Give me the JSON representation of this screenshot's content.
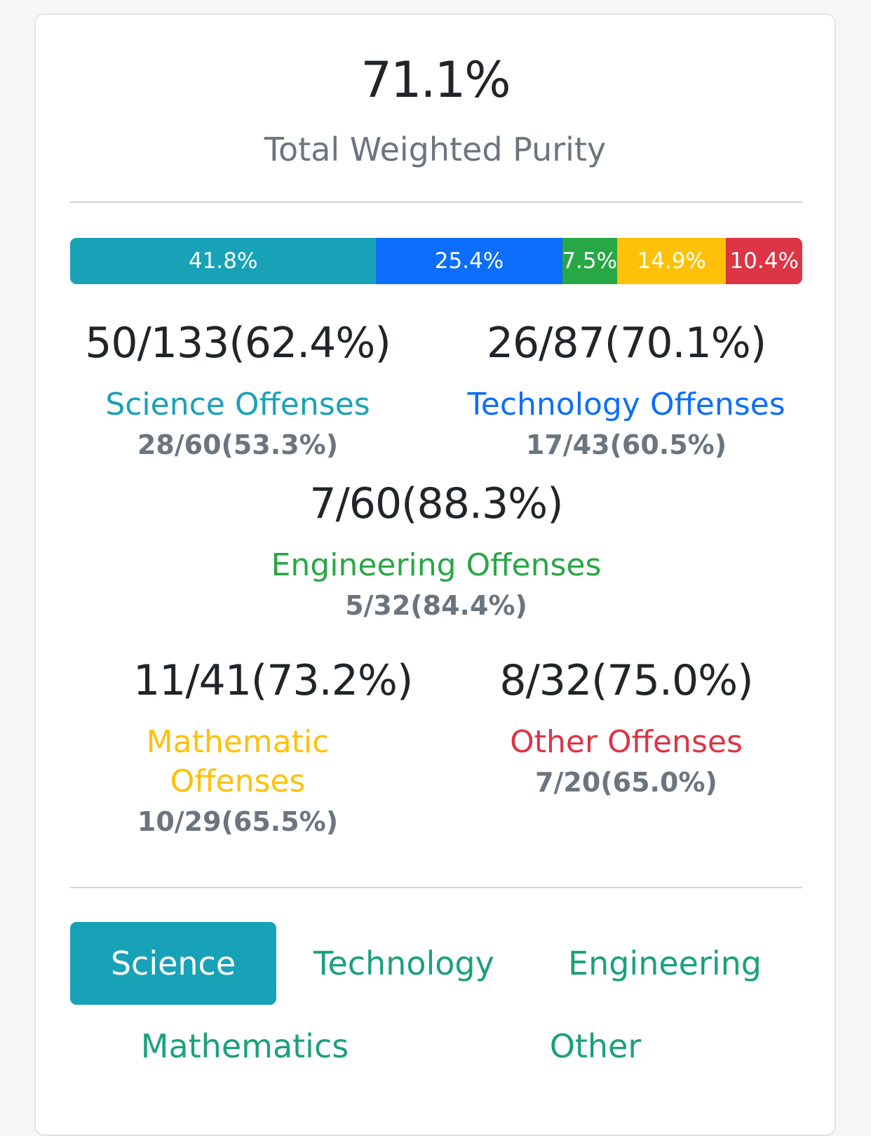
{
  "summary": {
    "total_value": "71.1%",
    "total_label": "Total Weighted Purity"
  },
  "progress": {
    "segments": [
      {
        "label": "41.8%",
        "value": 41.8,
        "color": "#17a2b8"
      },
      {
        "label": "25.4%",
        "value": 25.4,
        "color": "#0d6efd"
      },
      {
        "label": "7.5%",
        "value": 7.5,
        "color": "#28a745"
      },
      {
        "label": "14.9%",
        "value": 14.9,
        "color": "#ffc107"
      },
      {
        "label": "10.4%",
        "value": 10.4,
        "color": "#dc3545"
      }
    ]
  },
  "stats": {
    "science": {
      "main": "50/133(62.4%)",
      "label": "Science Offenses",
      "sub": "28/60(53.3%)",
      "color": "#17a2b8"
    },
    "technology": {
      "main": "26/87(70.1%)",
      "label": "Technology Offenses",
      "sub": "17/43(60.5%)",
      "color": "#0d6efd"
    },
    "engineering": {
      "main": "7/60(88.3%)",
      "label": "Engineering Offenses",
      "sub": "5/32(84.4%)",
      "color": "#28a745"
    },
    "mathematic": {
      "main": "11/41(73.2%)",
      "label": "Mathematic Offenses",
      "sub": "10/29(65.5%)",
      "color": "#ffc107"
    },
    "other": {
      "main": "8/32(75.0%)",
      "label": "Other Offenses",
      "sub": "7/20(65.0%)",
      "color": "#dc3545"
    }
  },
  "tabs": {
    "science": "Science",
    "technology": "Technology",
    "engineering": "Engineering",
    "mathematics": "Mathematics",
    "other": "Other",
    "active": "science"
  }
}
